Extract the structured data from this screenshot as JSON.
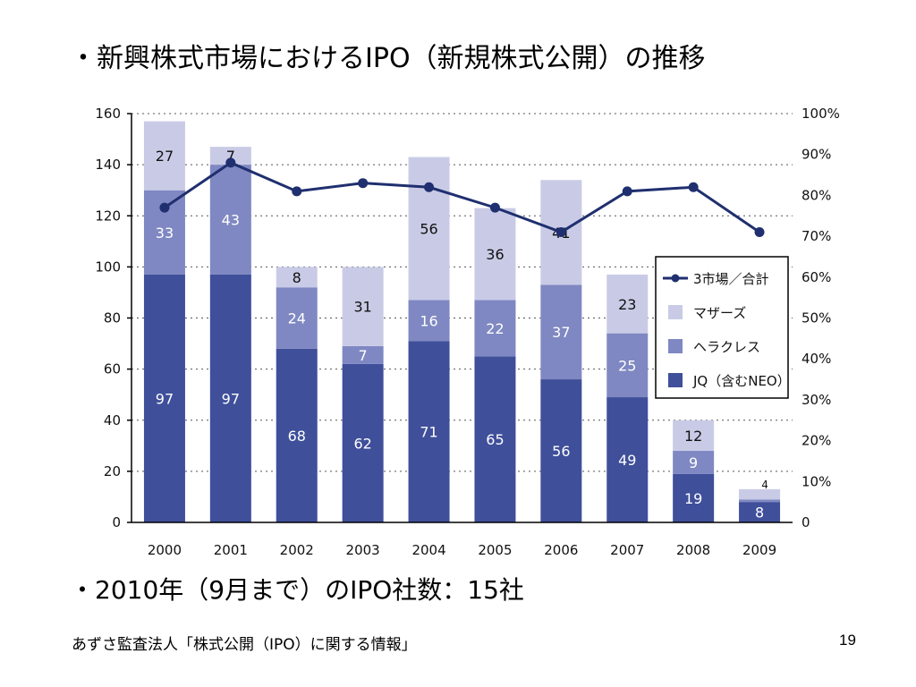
{
  "slide": {
    "title": "・新興株式市場におけるIPO（新規株式公開）の推移",
    "note": "・2010年（9月まで）のIPO社数：15社",
    "source": "あずさ監査法人「株式公開（IPO）に関する情報」",
    "page_number": "19"
  },
  "chart_data": {
    "type": "bar",
    "stacked": true,
    "categories": [
      "2000",
      "2001",
      "2002",
      "2003",
      "2004",
      "2005",
      "2006",
      "2007",
      "2008",
      "2009"
    ],
    "series": [
      {
        "name": "JQ（含むNEO）",
        "color": "#3f4f9a",
        "values": [
          97,
          97,
          68,
          62,
          71,
          65,
          56,
          49,
          19,
          8
        ]
      },
      {
        "name": "ヘラクレス",
        "color": "#7f88c2",
        "values": [
          33,
          43,
          24,
          7,
          16,
          22,
          37,
          25,
          9,
          1
        ]
      },
      {
        "name": "マザーズ",
        "color": "#c9cbe6",
        "values": [
          27,
          7,
          8,
          31,
          56,
          36,
          41,
          23,
          12,
          4
        ]
      }
    ],
    "line": {
      "name": "3市場／合計",
      "color": "#1f2f6f",
      "axis": "right",
      "values": [
        77,
        88,
        81,
        83,
        82,
        77,
        71,
        81,
        82,
        71
      ]
    },
    "y_left": {
      "min": 0,
      "max": 160,
      "ticks": [
        "0",
        "20",
        "40",
        "60",
        "80",
        "100",
        "120",
        "140",
        "160"
      ]
    },
    "y_right": {
      "min": 0,
      "max": 100,
      "ticks": [
        "0",
        "10%",
        "20%",
        "30%",
        "40%",
        "50%",
        "60%",
        "70%",
        "80%",
        "90%",
        "100%"
      ]
    },
    "grid": "dotted-horizontal",
    "legend_position": "right-middle",
    "legend_order": [
      "3市場／合計",
      "マザーズ",
      "ヘラクレス",
      "JQ（含むNEO）"
    ]
  }
}
